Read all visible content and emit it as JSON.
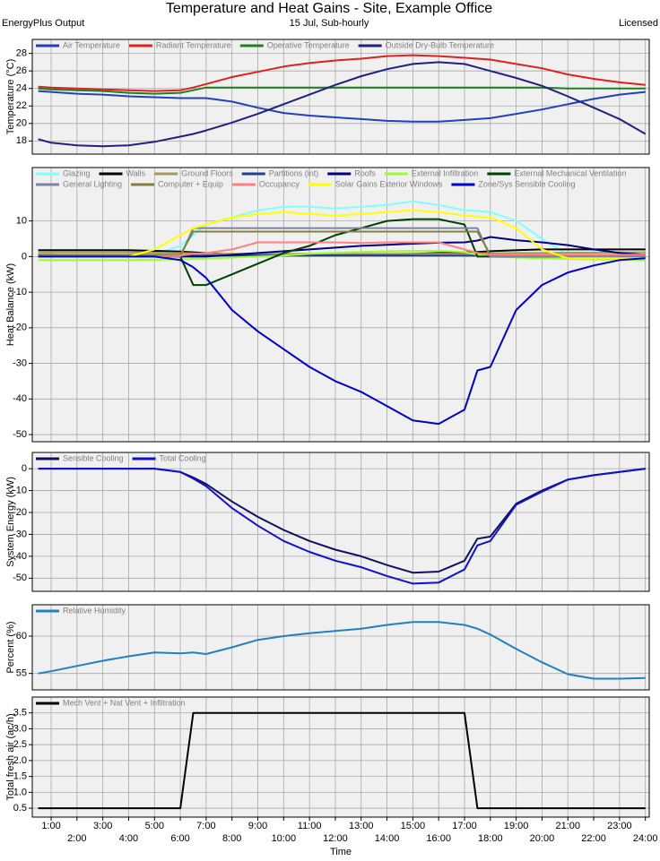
{
  "header": {
    "title": "Temperature and Heat Gains - Site, Example Office",
    "subtitle": "15 Jul, Sub-hourly",
    "left_note": "EnergyPlus Output",
    "right_note": "Licensed"
  },
  "chart_data": [
    {
      "type": "line",
      "y_label": "Temperature (°C)",
      "grid": true,
      "legend": "top-left",
      "x": [
        0.5,
        1,
        2,
        3,
        4,
        5,
        6,
        6.5,
        7,
        8,
        9,
        10,
        11,
        12,
        13,
        14,
        15,
        16,
        17,
        17.5,
        18,
        19,
        20,
        21,
        22,
        23,
        24
      ],
      "xlim": [
        0.27,
        24.15
      ],
      "ylim": [
        16.5,
        29.6
      ],
      "yticks": [
        18,
        20,
        22,
        24,
        26,
        28
      ],
      "series": [
        {
          "name": "Air Temperature",
          "color": "#2040c0",
          "values": [
            23.7,
            23.6,
            23.4,
            23.3,
            23.1,
            23.0,
            22.9,
            22.9,
            22.9,
            22.5,
            21.8,
            21.2,
            20.9,
            20.7,
            20.5,
            20.3,
            20.2,
            20.2,
            20.4,
            20.5,
            20.6,
            21.1,
            21.6,
            22.2,
            22.8,
            23.3,
            23.6
          ]
        },
        {
          "name": "Radiant Temperature",
          "color": "#e02020",
          "values": [
            24.2,
            24.1,
            24.0,
            23.9,
            23.8,
            23.7,
            23.8,
            24.1,
            24.5,
            25.3,
            25.9,
            26.5,
            26.9,
            27.2,
            27.4,
            27.7,
            27.8,
            27.7,
            27.5,
            27.4,
            27.3,
            26.8,
            26.3,
            25.6,
            25.1,
            24.7,
            24.4
          ]
        },
        {
          "name": "Operative Temperature",
          "color": "#208020",
          "values": [
            24.0,
            23.9,
            23.8,
            23.7,
            23.5,
            23.4,
            23.5,
            23.8,
            24.1,
            24.1,
            24.1,
            24.1,
            24.1,
            24.1,
            24.1,
            24.1,
            24.1,
            24.1,
            24.1,
            24.1,
            24.1,
            24.1,
            24.1,
            24.0,
            24.0,
            24.0,
            24.0
          ]
        },
        {
          "name": "Outside Dry-Bulb Temperature",
          "color": "#202080",
          "values": [
            18.2,
            17.8,
            17.5,
            17.4,
            17.5,
            17.9,
            18.5,
            18.8,
            19.2,
            20.1,
            21.1,
            22.2,
            23.3,
            24.4,
            25.4,
            26.2,
            26.8,
            27.0,
            26.8,
            26.4,
            26.0,
            25.2,
            24.3,
            23.1,
            21.8,
            20.5,
            18.8
          ]
        }
      ]
    },
    {
      "type": "line",
      "y_label": "Heat Balance (kW)",
      "grid": true,
      "legend": "top-left",
      "x": [
        0.5,
        1,
        2,
        3,
        4,
        5,
        6,
        6.5,
        7,
        8,
        9,
        10,
        11,
        12,
        13,
        14,
        15,
        16,
        17,
        17.5,
        18,
        19,
        20,
        21,
        22,
        23,
        24
      ],
      "xlim": [
        0.27,
        24.15
      ],
      "ylim": [
        -52,
        25
      ],
      "yticks": [
        -50,
        -40,
        -30,
        -20,
        -10,
        0,
        10
      ],
      "series": [
        {
          "name": "Glazing",
          "color": "#80ffff",
          "values": [
            0.5,
            0.5,
            0.5,
            0.5,
            0.5,
            0.6,
            3,
            6,
            9,
            11,
            13,
            14,
            14,
            13.5,
            14,
            14.5,
            15.5,
            14.5,
            13,
            12.8,
            12.5,
            10,
            5,
            0.5,
            0,
            0,
            0
          ]
        },
        {
          "name": "Walls",
          "color": "#000000",
          "values": [
            1.8,
            1.8,
            1.8,
            1.8,
            1.8,
            1.6,
            1.4,
            1.2,
            1.0,
            0.6,
            0.5,
            0.5,
            0.5,
            0.5,
            0.6,
            0.7,
            0.8,
            1.0,
            1.2,
            1.3,
            1.5,
            1.8,
            2.0,
            2.0,
            2.0,
            2.0,
            2.0
          ]
        },
        {
          "name": "Ground Floors",
          "color": "#a89858",
          "values": [
            1.2,
            1.2,
            1.2,
            1.2,
            1.2,
            1.1,
            1.0,
            0.9,
            0.8,
            0.8,
            0.8,
            0.8,
            0.8,
            0.8,
            0.8,
            0.8,
            0.8,
            0.8,
            0.8,
            0.9,
            0.9,
            1.0,
            1.0,
            1.1,
            1.1,
            1.2,
            1.2
          ]
        },
        {
          "name": "Partitions (int)",
          "color": "#1f3f8f",
          "values": [
            0.2,
            0.2,
            0.2,
            0.2,
            0.2,
            0.2,
            0.2,
            0.3,
            0.3,
            0.3,
            0.3,
            0.3,
            0.3,
            0.3,
            0.3,
            0.3,
            0.3,
            0.3,
            0.3,
            0.3,
            0.3,
            0.3,
            0.3,
            0.2,
            0.2,
            0.2,
            0.2
          ]
        },
        {
          "name": "Roofs",
          "color": "#000080",
          "values": [
            0.5,
            0.5,
            0.4,
            0.3,
            0.2,
            0.1,
            0,
            0,
            0,
            0.5,
            1,
            1.5,
            2,
            2.5,
            3,
            3.3,
            3.6,
            3.9,
            4,
            4.5,
            5.5,
            4.6,
            4,
            3.2,
            2,
            1,
            0.5
          ]
        },
        {
          "name": "External Infiltration",
          "color": "#99ff33",
          "values": [
            -1,
            -1,
            -1,
            -1,
            -1,
            -0.9,
            -0.8,
            -0.7,
            -0.6,
            -0.3,
            0,
            0.3,
            0.8,
            1.1,
            1.3,
            1.5,
            1.6,
            1.6,
            1.3,
            0.5,
            0,
            -0.3,
            -0.5,
            -0.7,
            -0.8,
            -0.9,
            -1
          ]
        },
        {
          "name": "External Mechanical Ventilation",
          "color": "#004000",
          "values": [
            0,
            0,
            0,
            0,
            0,
            0,
            0,
            -8,
            -8,
            -5,
            -2,
            1,
            3,
            6,
            8,
            10,
            10.5,
            10.5,
            9,
            0,
            0,
            0,
            0,
            0,
            0,
            0,
            0
          ]
        },
        {
          "name": "General Lighting",
          "color": "#8080a0",
          "values": [
            0,
            0,
            0,
            0,
            0,
            0,
            0,
            8,
            8,
            8,
            8,
            8,
            8,
            8,
            8,
            8,
            8,
            8,
            8,
            8,
            0,
            0,
            0,
            0,
            0,
            0,
            0
          ]
        },
        {
          "name": "Computer + Equip",
          "color": "#808040",
          "values": [
            0.5,
            0.5,
            0.5,
            0.5,
            0.5,
            0.5,
            0.5,
            7,
            7,
            7,
            7,
            7,
            7,
            7,
            7,
            7,
            7,
            7,
            7,
            7,
            0.5,
            0.5,
            0.5,
            0.5,
            0.5,
            0.5,
            0.5
          ]
        },
        {
          "name": "Occupancy",
          "color": "#ff8080",
          "values": [
            0,
            0,
            0,
            0,
            0,
            0,
            0.3,
            0.8,
            1,
            2,
            4,
            4,
            4,
            4,
            3.8,
            4,
            4,
            4,
            2,
            1,
            0.5,
            0.5,
            0.5,
            0.5,
            0.5,
            0.5,
            0.5
          ]
        },
        {
          "name": "Solar Gains Exterior Windows",
          "color": "#ffff00",
          "values": [
            0,
            0,
            0,
            0,
            0,
            2,
            6,
            8,
            9,
            11,
            12,
            12.5,
            12,
            11.5,
            12,
            12.5,
            13,
            12.5,
            11.5,
            11.2,
            11,
            8,
            2,
            -0.5,
            -0.5,
            -0.5,
            -0.5
          ]
        },
        {
          "name": "Zone/Sys Sensible Cooling",
          "color": "#0000cc",
          "values": [
            0,
            0,
            0,
            0,
            0,
            0,
            -1,
            -3,
            -6,
            -15,
            -21,
            -26,
            -31,
            -35,
            -38,
            -42,
            -46,
            -47,
            -43,
            -32,
            -31,
            -15,
            -8,
            -4.5,
            -2.5,
            -1,
            -0.5
          ]
        }
      ]
    },
    {
      "type": "line",
      "y_label": "System Energy (kW)",
      "grid": true,
      "legend": "top-left",
      "x": [
        0.5,
        1,
        2,
        3,
        4,
        5,
        6,
        6.5,
        7,
        8,
        9,
        10,
        11,
        12,
        13,
        14,
        15,
        16,
        17,
        17.5,
        18,
        19,
        20,
        21,
        22,
        23,
        24
      ],
      "xlim": [
        0.27,
        24.15
      ],
      "ylim": [
        -56,
        7.4
      ],
      "yticks": [
        -50,
        -40,
        -30,
        -20,
        -10,
        0
      ],
      "series": [
        {
          "name": "Sensible Cooling",
          "color": "#101060",
          "values": [
            0,
            0,
            0,
            0,
            0,
            0,
            -1.5,
            -4,
            -7,
            -15,
            -22,
            -28,
            -33,
            -37,
            -40,
            -44,
            -47.5,
            -47,
            -42,
            -32,
            -31,
            -16,
            -10,
            -5,
            -3,
            -1.5,
            0
          ]
        },
        {
          "name": "Total Cooling",
          "color": "#1010d0",
          "values": [
            0,
            0,
            0,
            0,
            0,
            0,
            -1.5,
            -4.5,
            -8,
            -18,
            -26,
            -33,
            -38,
            -42,
            -45,
            -49,
            -52.5,
            -52,
            -46,
            -35,
            -33,
            -16.5,
            -10.5,
            -5,
            -3,
            -1.5,
            0
          ]
        }
      ]
    },
    {
      "type": "line",
      "y_label": "Percent (%)",
      "grid": true,
      "legend": "top-left",
      "x": [
        0.5,
        1,
        2,
        3,
        4,
        5,
        6,
        6.5,
        7,
        8,
        9,
        10,
        11,
        12,
        13,
        14,
        15,
        16,
        17,
        17.5,
        18,
        19,
        20,
        21,
        22,
        23,
        24
      ],
      "xlim": [
        0.27,
        24.15
      ],
      "ylim": [
        52.8,
        64.2
      ],
      "yticks": [
        55,
        60
      ],
      "series": [
        {
          "name": "Relative Humidity",
          "color": "#2080c0",
          "values": [
            55.0,
            55.3,
            56.0,
            56.7,
            57.3,
            57.8,
            57.7,
            57.8,
            57.6,
            58.5,
            59.5,
            60.0,
            60.4,
            60.7,
            61.0,
            61.5,
            61.9,
            61.9,
            61.5,
            61.0,
            60.2,
            58.3,
            56.5,
            54.9,
            54.3,
            54.3,
            54.4
          ]
        }
      ]
    },
    {
      "type": "line",
      "y_label": "Total fresh air (ac/h)",
      "x_label": "Time",
      "grid": true,
      "legend": "top-left",
      "x": [
        0.5,
        6,
        6.5,
        17,
        17.5,
        24
      ],
      "xlim": [
        0.27,
        24.15
      ],
      "ylim": [
        0.22,
        4.0
      ],
      "yticks": [
        0.5,
        {
          "value": 1,
          "label": "1.0"
        },
        1.5,
        {
          "value": 2,
          "label": "2.0"
        },
        2.5,
        {
          "value": 3,
          "label": "3.0"
        },
        3.5
      ],
      "xticks": [
        {
          "value": 1,
          "label": "1:00"
        },
        {
          "value": 2,
          "label": "2:00"
        },
        {
          "value": 3,
          "label": "3:00"
        },
        {
          "value": 4,
          "label": "4:00"
        },
        {
          "value": 5,
          "label": "5:00"
        },
        {
          "value": 6,
          "label": "6:00"
        },
        {
          "value": 7,
          "label": "7:00"
        },
        {
          "value": 8,
          "label": "8:00"
        },
        {
          "value": 9,
          "label": "9:00"
        },
        {
          "value": 10,
          "label": "10:00"
        },
        {
          "value": 11,
          "label": "11:00"
        },
        {
          "value": 12,
          "label": "12:00"
        },
        {
          "value": 13,
          "label": "13:00"
        },
        {
          "value": 14,
          "label": "14:00"
        },
        {
          "value": 15,
          "label": "15:00"
        },
        {
          "value": 16,
          "label": "16:00"
        },
        {
          "value": 17,
          "label": "17:00"
        },
        {
          "value": 18,
          "label": "18:00"
        },
        {
          "value": 19,
          "label": "19:00"
        },
        {
          "value": 20,
          "label": "20:00"
        },
        {
          "value": 21,
          "label": "21:00"
        },
        {
          "value": 22,
          "label": "22:00"
        },
        {
          "value": 23,
          "label": "23:00"
        },
        {
          "value": 24,
          "label": "24:00"
        }
      ],
      "series": [
        {
          "name": "Mech Vent + Nat Vent + Infiltration",
          "color": "#000000",
          "values": [
            0.5,
            0.5,
            3.5,
            3.5,
            0.5,
            0.5
          ]
        }
      ]
    }
  ]
}
